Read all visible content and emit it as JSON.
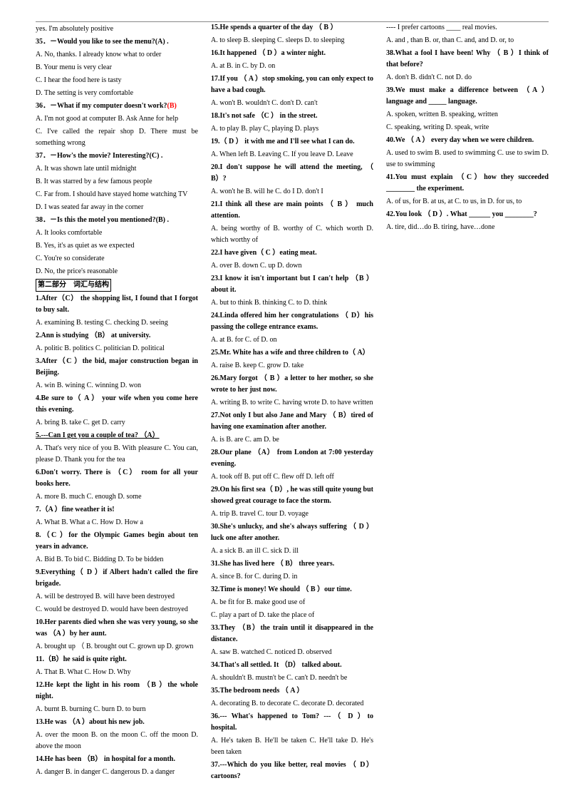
{
  "colors": {
    "text": "#000000",
    "bg": "#ffffff",
    "red": "#ff0000"
  },
  "fonts": {
    "base_size": 10,
    "family": "Times New Roman"
  },
  "lines": [
    {
      "t": "yes. I'm absolutely positive"
    },
    {
      "t": "35．－Would you like to see the menu?(A)          .",
      "b": true
    },
    {
      "t": "A. No, thanks. I already know what to order"
    },
    {
      "t": "B. Your menu is very clear"
    },
    {
      "t": "C. I hear the food here is tasty"
    },
    {
      "t": "D. The setting is very comfortable"
    },
    {
      "t": "36．－What if my computer doesn't work?",
      "b": true,
      "suffix_red": "(B)"
    },
    {
      "t": "A. I'm not good at computer                              B. Ask Anne for help"
    },
    {
      "t": "C. I've called the repair shop                             D. There must be something wrong"
    },
    {
      "t": "37．－How's the movie? Interesting?(C)    .",
      "b": true
    },
    {
      "t": "A. It was shown late until midnight"
    },
    {
      "t": "B. It was starred by a few famous people"
    },
    {
      "t": "C. Far from. I should have stayed home watching TV"
    },
    {
      "t": "D. I was seated far away in the corner"
    },
    {
      "t": "38．－Is this the motel you mentioned?(B)            .",
      "b": true
    },
    {
      "t": "A. It looks comfortable"
    },
    {
      "t": "B. Yes, it's as quiet as we expected"
    },
    {
      "t": "C. You're so considerate"
    },
    {
      "t": "D. No, the price's reasonable"
    },
    {
      "t": "第二部分　词汇与结构",
      "boxed": true
    },
    {
      "t": "1.After（C）   the shopping list, I found that I forgot to buy salt.",
      "b": true
    },
    {
      "t": "A. examining        B. testing                 C. checking         D. seeing"
    },
    {
      "t": "2.Ann is studying  （B）  at university.",
      "b": true
    },
    {
      "t": "A. politic                B. politics                C. politician         D. political"
    },
    {
      "t": "3.After（C ）the bid, major construction began in Beijing.",
      "b": true
    },
    {
      "t": "A. win                    B. wining                 C. winning           D. won"
    },
    {
      "t": "4.Be sure to（ A ）  your wife when you come here this evening.",
      "b": true
    },
    {
      "t": "   A. bring                                                     B. take                  C. get                             D. carry"
    },
    {
      "t": "5.---Can I get you a couple of tea?  （A）",
      "b": true,
      "u": true
    },
    {
      "t": "A. That's very nice of you      B. With pleasure      C. You can, please      D. Thank you for the tea"
    },
    {
      "t": "6.Don't worry. There is   （C）   room for all your books here.",
      "b": true
    },
    {
      "t": "A.   more                                                     B.   much               C. enough                     D. some"
    },
    {
      "t": "7.（A  ）fine weather it is!",
      "b": true
    },
    {
      "t": "   A. What                            B. What a               C. How                          D. How a"
    },
    {
      "t": "8.（C  ）for the Olympic Games begin about ten years in advance.",
      "b": true
    },
    {
      "t": "A. Bid                 B. To bid                       C. Bidding          D. To be bidden"
    },
    {
      "t": "9.Everything（  D  ）if Albert hadn't called the fire brigade.",
      "b": true
    },
    {
      "t": "A.  will be destroyed                                           B.  will have been destroyed"
    },
    {
      "t": "  C.  would be destroyed                                       D.  would have been destroyed"
    },
    {
      "t": "10.Her parents died when she was very young, so she was  （A  ）by her aunt.",
      "b": true
    },
    {
      "t": "   A.  brought   up               （  B.  brought   out   C.  grown  up                       D.  grown"
    },
    {
      "t": "11.（B）he said is quite right.",
      "b": true
    },
    {
      "t": "   A.  That                                                     B.  What             C. How                          D. Why"
    },
    {
      "t": "12.He kept the light in his room  （B  ）the whole night.",
      "b": true
    },
    {
      "t": "   A. burnt                          B. burning               C. burn              D. to burn"
    },
    {
      "t": "13.He was  （A  ）about his new job.",
      "b": true
    },
    {
      "t": "A. over the moon        B. on the moon        C. off the moon        D. above the moon"
    },
    {
      "t": "14.He has been  （B）   in hospital for a month.",
      "b": true
    },
    {
      "t": "   A.   danger                                                B.   in   danger       C. dangerous                D. a danger"
    },
    {
      "t": "15.He spends a quarter of the day  （ B  ）",
      "b": true
    },
    {
      "t": "A. to sleep               B. sleeping               C. sleeps           D. to sleeping"
    },
    {
      "t": "16.It happened  （ D  ）a winter night.",
      "b": true
    },
    {
      "t": "   A.  at                        B.  in                          C.  by              D. on"
    },
    {
      "t": "17.If you  （  A  ）stop smoking, you can only expect to have a bad cough.",
      "b": true
    },
    {
      "t": "   A.  won't                    B.  wouldn't                C.  don't                       D. can't"
    },
    {
      "t": "18.It's not safe  （C  ）  in the street.",
      "b": true
    },
    {
      "t": "A. to play                        B. play                 C, playing              D. plays"
    },
    {
      "t": "19.（ D  ）  it with me and I'll see what I can do.",
      "b": true
    },
    {
      "t": "   A.   When   left                                            B.   Leaving           C. If you leave      D. Leave"
    },
    {
      "t": "20.I don't suppose he will attend the meeting,  （ B）?",
      "b": true
    },
    {
      "t": "   A.  won't  he                          B.  will  he                  C.  do I                      D. don't I"
    },
    {
      "t": "21.I think all these are main points （ B ）  much attention.",
      "b": true
    },
    {
      "t": "A. being worthy of B. worthy of               C. which worth         D. which worthy of"
    },
    {
      "t": "22.I have given（ C  ）eating meat.",
      "b": true
    },
    {
      "t": "A.  over                                     B.  down                        C.  up                            D. down"
    },
    {
      "t": "23.I know it isn't important but I can't help  （B ）about it.",
      "b": true
    },
    {
      "t": "   A. but to think         B. thinking                  C. to           D. think"
    },
    {
      "t": "24.Linda offered him her congratulations  （ D）his passing the college entrance exams.",
      "b": true
    },
    {
      "t": "   A.  at                                                     B.  for                    C. of                              D. on"
    },
    {
      "t": "25.Mr. White has a wife and three children to（ A）",
      "b": true
    },
    {
      "t": "   A. raise                          B. keep                      C. grow                         D. take"
    },
    {
      "t": "26.Mary forgot （ B  ）a letter to her mother, so she wrote to her just now.",
      "b": true
    },
    {
      "t": "   A.  writing                                                 B.  to  write            C. having wrote     D. to have written"
    },
    {
      "t": "27.Not only I but also Jane and Mary （ B）tired of having one examination after another.",
      "b": true
    },
    {
      "t": "   A.  is                              B.  are                         C.  am                           D. be"
    },
    {
      "t": "28.Our plane  （A）  from London at 7:00 yesterday evening.",
      "b": true
    },
    {
      "t": "   A.  took off                         B.  put off                         C.  flew off                         D. left off"
    },
    {
      "t": "29.On his first sea（ D）, he was still quite young but showed great courage to face the storm.",
      "b": true
    },
    {
      "t": "A.   trip                                    B.   travel                      C.   tour           D. voyage"
    },
    {
      "t": "30.She's unlucky, and she's always suffering  （ D  ）luck one after another.",
      "b": true
    },
    {
      "t": "     A.   a   sick                                             B.   an   ill              C. sick                        D. ill"
    },
    {
      "t": "31.She has lived here  （ B）  three years.",
      "b": true
    },
    {
      "t": "A.      since                              B.      for                              C.      during                      D. in"
    },
    {
      "t": "32.Time is money! We should  （ B  ）our time.",
      "b": true
    },
    {
      "t": "     A.               be               fit               for           B. make good use of"
    },
    {
      "t": "     C.               play               a               part               of           D. take the place of"
    },
    {
      "t": "33.They  （B）the train until it disappeared in the distance.",
      "b": true
    },
    {
      "t": "     A.   saw                                B.   watched                   C.   noticed           D. observed"
    },
    {
      "t": "34.That's all settled. It  （D）  talked about.",
      "b": true
    },
    {
      "t": "A. shouldn't           B. mustn't be          C. can't           D. needn't be"
    },
    {
      "t": "35.The bedroom needs  （ A  ）",
      "b": true
    },
    {
      "t": "A.  decorating                B.  to  decorate                C.  decorate           D. decorated"
    },
    {
      "t": "36.--- What's happened to Tom?   ---（ D  ）to hospital.",
      "b": true
    },
    {
      "t": "A.       He's taken           B. He'll be taken          C. He'll take           D. He's been taken"
    },
    {
      "t": "37.---Which do you like better, real movies  （ D）cartoons?",
      "b": true
    },
    {
      "t": "---- I prefer cartoons   ____  real movies."
    },
    {
      "t": "   A. and , than           B. or, than               C. and, and          D. or, to"
    },
    {
      "t": "38.What a fool I have been! Why （ B  ）I think of that before?",
      "b": true
    },
    {
      "t": "     A.   don't                                B.   didn't                         C.   not                           D. do"
    },
    {
      "t": "39.We must make a difference between （A  ）language and _____ language.",
      "b": true
    },
    {
      "t": "     A.               spoken,               written           B. speaking, written"
    },
    {
      "t": "     C.               speaking,               writing           D. speak, write"
    },
    {
      "t": "40.We  （ A  ）  every day when we were children.",
      "b": true
    },
    {
      "t": "A. used to swim    B. used to swimming     C. use to swim     D. use to swimming"
    },
    {
      "t": "41.You must explain  （C）how they succeeded ________ the experiment.",
      "b": true
    },
    {
      "t": "   A. of  us, for           B. at us, at             C. to us, in          D. for us, to"
    },
    {
      "t": "42.You look  （ D  ）. What ______ you ________?",
      "b": true
    },
    {
      "t": "A. tire, did…do                                             B. tiring, have…done"
    }
  ]
}
